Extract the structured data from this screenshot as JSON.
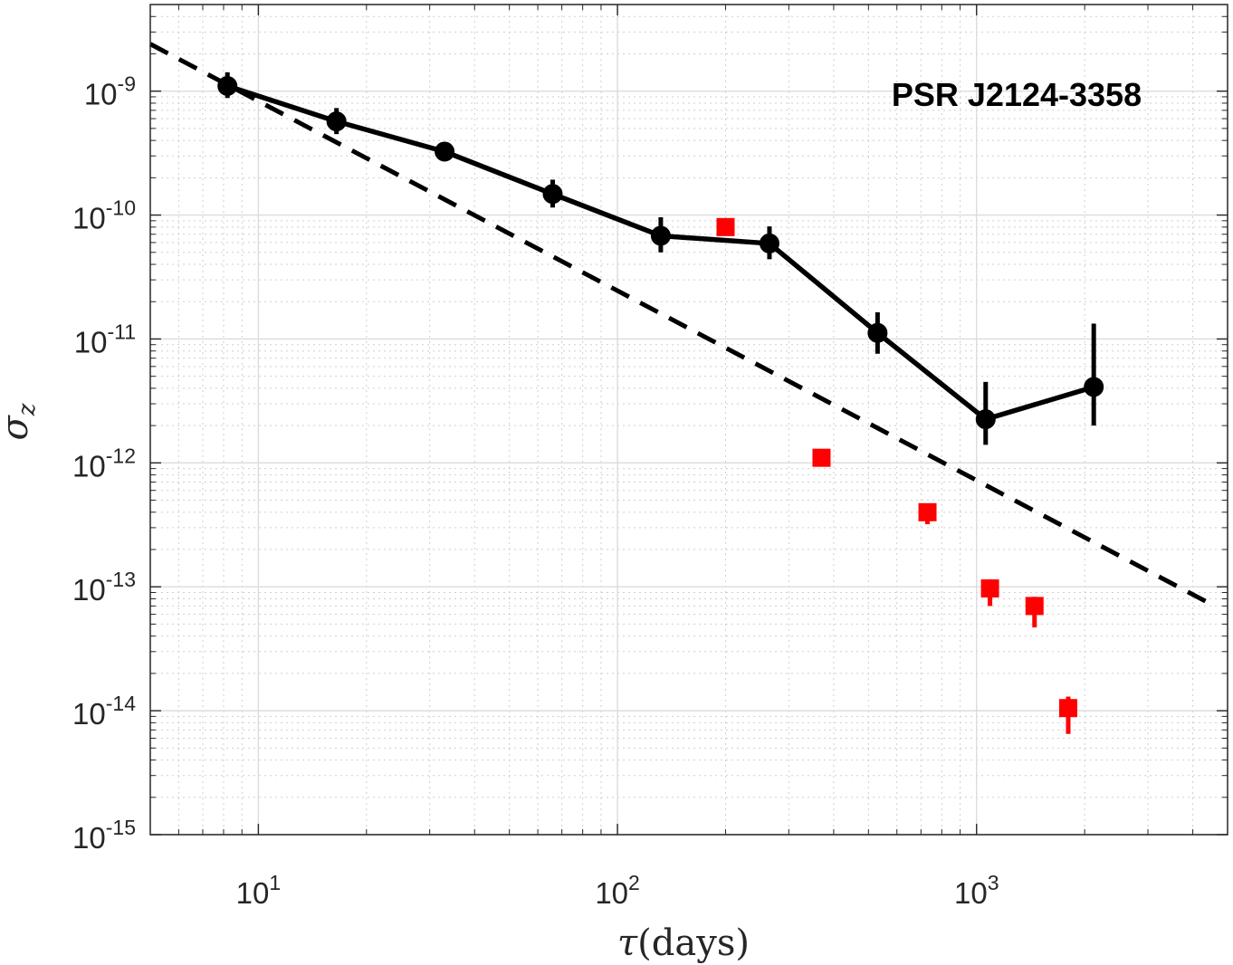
{
  "chart_data": {
    "type": "scatter",
    "title": "",
    "annotation": "PSR J2124-3358",
    "xlabel": {
      "symbol": "τ",
      "text": "(days)"
    },
    "ylabel": {
      "symbol": "σ",
      "subscript": "z"
    },
    "xscale": "log",
    "yscale": "log",
    "xlim": [
      5,
      5000
    ],
    "ylim": [
      1e-15,
      5e-09
    ],
    "grid": true,
    "x_ticks": [
      {
        "base": "10",
        "exp": "1",
        "value": 10
      },
      {
        "base": "10",
        "exp": "2",
        "value": 100
      },
      {
        "base": "10",
        "exp": "3",
        "value": 1000
      }
    ],
    "y_ticks": [
      {
        "base": "10",
        "exp": "-15",
        "value": 1e-15
      },
      {
        "base": "10",
        "exp": "-14",
        "value": 1e-14
      },
      {
        "base": "10",
        "exp": "-13",
        "value": 1e-13
      },
      {
        "base": "10",
        "exp": "-12",
        "value": 1e-12
      },
      {
        "base": "10",
        "exp": "-11",
        "value": 1e-11
      },
      {
        "base": "10",
        "exp": "-10",
        "value": 1e-10
      },
      {
        "base": "10",
        "exp": "-9",
        "value": 1e-09
      }
    ],
    "series": [
      {
        "style": "black circles with solid line",
        "color": "#000000",
        "points": [
          {
            "x": 8.2,
            "y": 1.1e-09,
            "ylow": 8.8e-10,
            "yhigh": 1.42e-09
          },
          {
            "x": 16.5,
            "y": 5.7e-10,
            "ylow": 4.5e-10,
            "yhigh": 7.3e-10
          },
          {
            "x": 33,
            "y": 3.25e-10,
            "ylow": 2.8e-10,
            "yhigh": 3.75e-10
          },
          {
            "x": 66,
            "y": 1.48e-10,
            "ylow": 1.15e-10,
            "yhigh": 1.93e-10
          },
          {
            "x": 132,
            "y": 6.8e-11,
            "ylow": 5e-11,
            "yhigh": 9.6e-11
          },
          {
            "x": 265,
            "y": 5.9e-11,
            "ylow": 4.4e-11,
            "yhigh": 8.1e-11
          },
          {
            "x": 530,
            "y": 1.12e-11,
            "ylow": 7.6e-12,
            "yhigh": 1.64e-11
          },
          {
            "x": 1060,
            "y": 2.25e-12,
            "ylow": 1.4e-12,
            "yhigh": 4.5e-12
          },
          {
            "x": 2120,
            "y": 4.1e-12,
            "ylow": 2e-12,
            "yhigh": 1.33e-11
          }
        ]
      },
      {
        "style": "red squares",
        "color": "#ff0000",
        "points": [
          {
            "x": 200,
            "y": 8e-11,
            "ylow": 7.6e-11,
            "yhigh": 8.4e-11
          },
          {
            "x": 370,
            "y": 1.1e-12,
            "ylow": 1e-12,
            "yhigh": 1.2e-12
          },
          {
            "x": 730,
            "y": 4e-13,
            "ylow": 3.2e-13,
            "yhigh": 4.6e-13
          },
          {
            "x": 1090,
            "y": 9.7e-14,
            "ylow": 7e-14,
            "yhigh": 1.15e-13
          },
          {
            "x": 1450,
            "y": 7e-14,
            "ylow": 4.7e-14,
            "yhigh": 8.3e-14
          },
          {
            "x": 1800,
            "y": 1.05e-14,
            "ylow": 6.5e-15,
            "yhigh": 1.3e-14
          }
        ]
      },
      {
        "style": "black dashed line",
        "color": "#000000",
        "points": [
          {
            "x": 5,
            "y": 2.4e-09
          },
          {
            "x": 4600,
            "y": 7e-14
          }
        ]
      }
    ]
  }
}
